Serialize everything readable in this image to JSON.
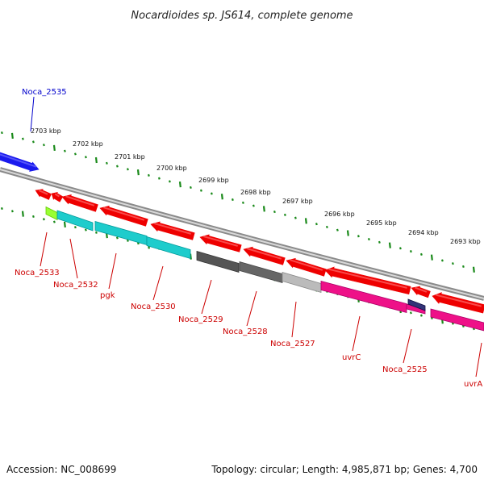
{
  "title": "Nocardioides sp. JS614, complete genome",
  "footer": {
    "accession": "Accession: NC_008699",
    "summary": "Topology: circular; Length: 4,985,871 bp; Genes: 4,700"
  },
  "colors": {
    "backbone": "#8a8a8a",
    "tick": "#1a8a1a",
    "label_red": "#cc0000",
    "label_blue": "#0000cc"
  },
  "scale_labels": [
    "2703 kbp",
    "2702 kbp",
    "2701 kbp",
    "2700 kbp",
    "2699 kbp",
    "2698 kbp",
    "2697 kbp",
    "2696 kbp",
    "2695 kbp",
    "2694 kbp",
    "2693 kbp"
  ],
  "genes": [
    {
      "name": "Noca_2535",
      "strand": "plus",
      "color": "#1a1aee",
      "shaft": "#6f6fff"
    },
    {
      "name": "Noca_2533",
      "strand": "minus",
      "color": "#ee0000",
      "shaft": "#ff6a6a"
    },
    {
      "name": "Noca_2532",
      "strand": "minus",
      "color": "#ee0000",
      "shaft": "#ff6a6a"
    },
    {
      "name": "pgk",
      "strand": "minus",
      "color": "#ee0000",
      "shaft": "#ff6a6a"
    },
    {
      "name": "Noca_2530",
      "strand": "minus",
      "color": "#ee0000",
      "shaft": "#ff6a6a"
    },
    {
      "name": "Noca_2529",
      "strand": "minus",
      "color": "#ee0000",
      "shaft": "#ff6a6a"
    },
    {
      "name": "Noca_2528",
      "strand": "minus",
      "color": "#ee0000",
      "shaft": "#ff6a6a"
    },
    {
      "name": "Noca_2527",
      "strand": "minus",
      "color": "#ee0000",
      "shaft": "#ff6a6a"
    },
    {
      "name": "uvrC",
      "strand": "minus",
      "color": "#ee0000",
      "shaft": "#ff6a6a"
    },
    {
      "name": "Noca_2525",
      "strand": "minus",
      "color": "#ee0000",
      "shaft": "#ff6a6a"
    },
    {
      "name": "uvrA",
      "strand": "minus",
      "color": "#ee0000",
      "shaft": "#ff6a6a"
    }
  ],
  "features": [
    {
      "color": "#99ff33",
      "edge": "#66cc00"
    },
    {
      "color": "#1ecccc",
      "edge": "#009999"
    },
    {
      "color": "#1ecccc",
      "edge": "#009999"
    },
    {
      "color": "#1ecccc",
      "edge": "#009999"
    },
    {
      "color": "#555555",
      "edge": "#333333"
    },
    {
      "color": "#666666",
      "edge": "#444444"
    },
    {
      "color": "#bbbbbb",
      "edge": "#888888"
    },
    {
      "color": "#ee1188",
      "edge": "#aa0066"
    },
    {
      "color": "#ee1188",
      "edge": "#aa0066"
    },
    {
      "color": "#333377",
      "edge": "#111144"
    },
    {
      "color": "#ee1188",
      "edge": "#aa0066"
    }
  ]
}
